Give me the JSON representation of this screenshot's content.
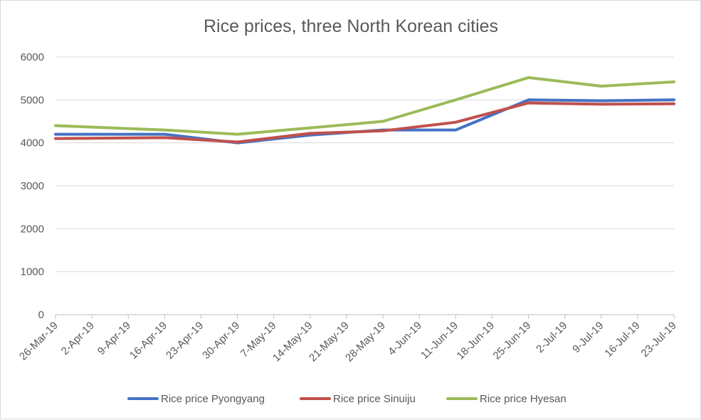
{
  "chart_data": {
    "type": "line",
    "title": "Rice prices, three North Korean cities",
    "xlabel": "",
    "ylabel": "",
    "x_ticks": [
      "26-Mar-19",
      "2-Apr-19",
      "9-Apr-19",
      "16-Apr-19",
      "23-Apr-19",
      "30-Apr-19",
      "7-May-19",
      "14-May-19",
      "21-May-19",
      "28-May-19",
      "4-Jun-19",
      "11-Jun-19",
      "18-Jun-19",
      "25-Jun-19",
      "2-Jul-19",
      "9-Jul-19",
      "16-Jul-19",
      "23-Jul-19"
    ],
    "x_range": [
      "26-Mar-19",
      "23-Jul-19"
    ],
    "ylim": [
      0,
      6000
    ],
    "y_ticks": [
      "0",
      "1000",
      "2000",
      "3000",
      "4000",
      "5000",
      "6000"
    ],
    "grid": "horizontal",
    "legend_position": "bottom",
    "series": [
      {
        "name": "Rice price Pyongyang",
        "color": "#4472c4",
        "x": [
          "26-Mar-19",
          "16-Apr-19",
          "30-Apr-19",
          "14-May-19",
          "28-May-19",
          "11-Jun-19",
          "25-Jun-19",
          "9-Jul-19",
          "23-Jul-19"
        ],
        "values": [
          4200,
          4200,
          4000,
          4180,
          4300,
          4300,
          5000,
          4980,
          5000
        ]
      },
      {
        "name": "Rice price Sinuiju",
        "color": "#c0504d",
        "x": [
          "26-Mar-19",
          "16-Apr-19",
          "30-Apr-19",
          "14-May-19",
          "28-May-19",
          "11-Jun-19",
          "25-Jun-19",
          "9-Jul-19",
          "23-Jul-19"
        ],
        "values": [
          4100,
          4120,
          4020,
          4220,
          4280,
          4480,
          4930,
          4900,
          4910
        ]
      },
      {
        "name": "Rice price Hyesan",
        "color": "#9bbb59",
        "x": [
          "26-Mar-19",
          "16-Apr-19",
          "30-Apr-19",
          "14-May-19",
          "28-May-19",
          "11-Jun-19",
          "25-Jun-19",
          "9-Jul-19",
          "23-Jul-19"
        ],
        "values": [
          4400,
          4300,
          4200,
          4350,
          4500,
          5000,
          5520,
          5320,
          5420
        ]
      }
    ]
  }
}
